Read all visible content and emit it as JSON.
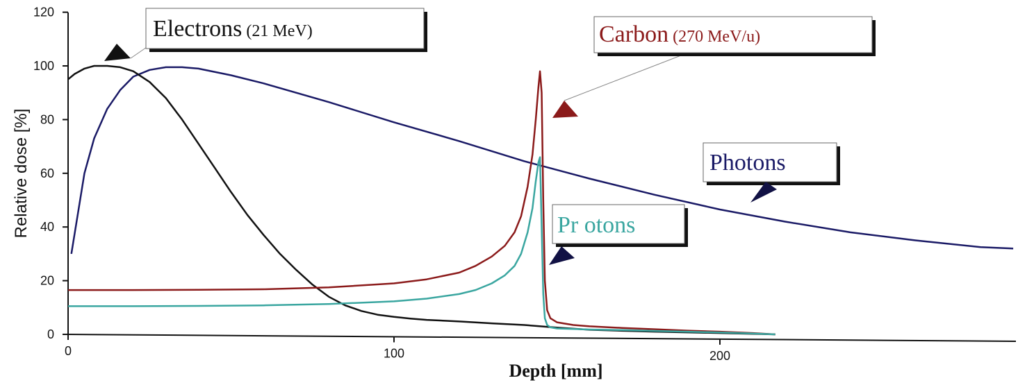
{
  "chart_data": {
    "type": "line",
    "title": "",
    "xlabel": "Depth [mm]",
    "ylabel": "Relative dose [%]",
    "xlim": [
      0,
      290
    ],
    "ylim": [
      0,
      120
    ],
    "x_ticks": [
      "0",
      "100",
      "200"
    ],
    "x_tick_values": [
      0,
      100,
      200
    ],
    "y_ticks": [
      "0",
      "20",
      "40",
      "60",
      "80",
      "100",
      "120"
    ],
    "y_tick_values": [
      0,
      20,
      40,
      60,
      80,
      100,
      120
    ],
    "grid": false,
    "series": [
      {
        "name": "Electrons (21 MeV)",
        "label_main": "Electrons",
        "label_sub": "(21 MeV)",
        "color": "#111111",
        "x": [
          0,
          2,
          5,
          8,
          12,
          16,
          20,
          25,
          30,
          35,
          40,
          45,
          50,
          55,
          60,
          65,
          70,
          75,
          80,
          85,
          90,
          95,
          100,
          105,
          110,
          120,
          130,
          140,
          150,
          160,
          180,
          200,
          217
        ],
        "y": [
          95,
          97,
          99,
          100,
          100,
          99.5,
          98,
          94,
          88,
          80,
          71,
          62,
          53,
          44.5,
          37,
          30,
          24,
          18.5,
          14,
          10.8,
          8.7,
          7.3,
          6.5,
          5.9,
          5.4,
          4.8,
          4.1,
          3.5,
          2.5,
          1.7,
          1.0,
          0.5,
          0
        ]
      },
      {
        "name": "Photons",
        "label_main": "Photons",
        "color": "#1a1a66",
        "x": [
          1,
          3,
          5,
          8,
          12,
          16,
          20,
          25,
          30,
          35,
          40,
          50,
          60,
          80,
          100,
          120,
          140,
          160,
          180,
          200,
          220,
          240,
          260,
          280,
          290
        ],
        "y": [
          30,
          45,
          60,
          73,
          84,
          91,
          96,
          98.5,
          99.5,
          99.5,
          99,
          96.5,
          93.5,
          86.5,
          79,
          72,
          64.5,
          58,
          52,
          46.5,
          42,
          38,
          35,
          32.5,
          32
        ]
      },
      {
        "name": "Carbon (270 MeV/u)",
        "label_main": "Carbon",
        "label_sub": "(270 MeV/u)",
        "color": "#8b1a1a",
        "x": [
          0,
          20,
          40,
          60,
          80,
          100,
          110,
          120,
          125,
          130,
          134,
          137,
          139,
          141,
          142.5,
          143.5,
          144.3,
          144.8,
          145.3,
          145.8,
          146.3,
          147,
          148,
          150,
          155,
          160,
          170,
          180,
          190,
          200,
          210,
          217
        ],
        "y": [
          16.5,
          16.5,
          16.6,
          16.8,
          17.5,
          19,
          20.5,
          23,
          25.5,
          29,
          33,
          38,
          44,
          55,
          67,
          80,
          92,
          98,
          90,
          50,
          20,
          9,
          6,
          4.5,
          3.5,
          3,
          2.4,
          1.9,
          1.4,
          1.0,
          0.5,
          0
        ]
      },
      {
        "name": "Protons",
        "label_main": "Pr otons",
        "color": "#3aa6a0",
        "x": [
          0,
          20,
          40,
          60,
          80,
          100,
          110,
          120,
          125,
          130,
          134,
          137,
          139,
          141,
          142.5,
          143.5,
          144.3,
          144.8,
          145.3,
          145.8,
          146.3,
          147,
          148,
          150,
          155,
          160,
          170,
          180,
          190,
          200,
          210,
          217
        ],
        "y": [
          10.5,
          10.5,
          10.6,
          10.8,
          11.3,
          12.3,
          13.3,
          15,
          16.5,
          19,
          22,
          25.5,
          30,
          38,
          47,
          57,
          64,
          66,
          40,
          15,
          6,
          3.5,
          2.6,
          2.2,
          2,
          1.8,
          1.6,
          1.3,
          1.0,
          0.7,
          0.3,
          0
        ]
      }
    ],
    "annotations": [
      {
        "series": "Electrons (21 MeV)",
        "target": [
          13,
          100
        ]
      },
      {
        "series": "Carbon (270 MeV/u)",
        "target": [
          148,
          80
        ]
      },
      {
        "series": "Photons",
        "target": [
          210,
          49
        ]
      },
      {
        "series": "Protons",
        "target": [
          148,
          26
        ]
      }
    ]
  }
}
